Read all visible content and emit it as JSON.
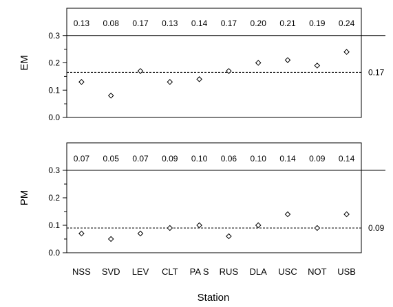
{
  "chart_data": [
    {
      "type": "scatter",
      "ylabel": "EM",
      "xlabel": "",
      "categories": [
        "NSS",
        "SVD",
        "LEV",
        "CLT",
        "PAS",
        "RUS",
        "DLA",
        "USC",
        "NOT",
        "USB"
      ],
      "values": [
        0.13,
        0.08,
        0.17,
        0.13,
        0.14,
        0.17,
        0.2,
        0.21,
        0.19,
        0.24
      ],
      "value_labels": [
        "0.13",
        "0.08",
        "0.17",
        "0.13",
        "0.14",
        "0.17",
        "0.20",
        "0.21",
        "0.19",
        "0.24"
      ],
      "mean_value": 0.165,
      "mean_label": "0.17",
      "reference_line": 0.3,
      "yticks": [
        0.0,
        0.1,
        0.2,
        0.3
      ],
      "ytick_labels": [
        "0.0",
        "0.1",
        "0.2",
        "0.3"
      ],
      "ylim": [
        0.0,
        0.4
      ],
      "grid": false,
      "marker": "diamond"
    },
    {
      "type": "scatter",
      "ylabel": "PM",
      "xlabel": "Station",
      "categories": [
        "NSS",
        "SVD",
        "LEV",
        "CLT",
        "PAS",
        "RUS",
        "DLA",
        "USC",
        "NOT",
        "USB"
      ],
      "category_labels": [
        "NSS",
        "SVD",
        "LEV",
        "CLT",
        "PA S",
        "RUS",
        "DLA",
        "USC",
        "NOT",
        "USB"
      ],
      "values": [
        0.07,
        0.05,
        0.07,
        0.09,
        0.1,
        0.06,
        0.1,
        0.14,
        0.09,
        0.14
      ],
      "value_labels": [
        "0.07",
        "0.05",
        "0.07",
        "0.09",
        "0.10",
        "0.06",
        "0.10",
        "0.14",
        "0.09",
        "0.14"
      ],
      "mean_value": 0.09,
      "mean_label": "0.09",
      "reference_line": 0.3,
      "yticks": [
        0.0,
        0.1,
        0.2,
        0.3
      ],
      "ytick_labels": [
        "0.0",
        "0.1",
        "0.2",
        "0.3"
      ],
      "ylim": [
        0.0,
        0.4
      ],
      "grid": false,
      "marker": "diamond"
    }
  ]
}
